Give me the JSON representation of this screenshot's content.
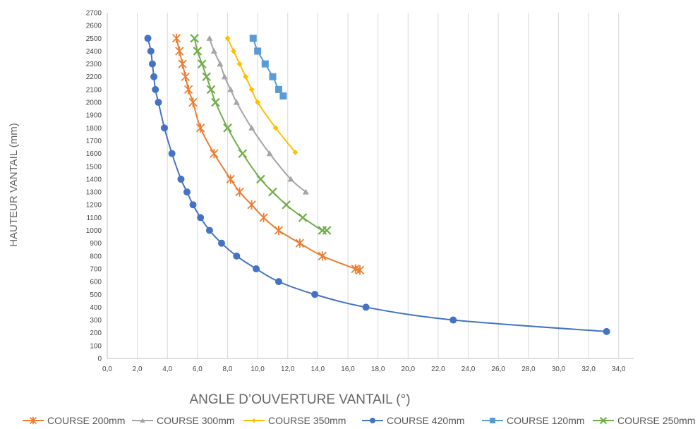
{
  "chart_data": {
    "type": "line",
    "title": "",
    "xlabel": "ANGLE D’OUVERTURE VANTAIL (°)",
    "ylabel": "HAUTEUR VANTAIL (mm)",
    "xlim": [
      0,
      35
    ],
    "ylim": [
      0,
      2700
    ],
    "x_ticks": [
      "0,0",
      "2,0",
      "4,0",
      "6,0",
      "8,0",
      "10,0",
      "12,0",
      "14,0",
      "16,0",
      "18,0",
      "20,0",
      "22,0",
      "24,0",
      "26,0",
      "28,0",
      "30,0",
      "32,0",
      "34,0"
    ],
    "y_ticks": [
      "0",
      "100",
      "200",
      "300",
      "400",
      "500",
      "600",
      "700",
      "800",
      "900",
      "1000",
      "1100",
      "1200",
      "1300",
      "1400",
      "1500",
      "1600",
      "1700",
      "1800",
      "1900",
      "2000",
      "2100",
      "2200",
      "2300",
      "2400",
      "2500",
      "2600",
      "2700"
    ],
    "grid": "vertical",
    "legend_position": "bottom",
    "series": [
      {
        "name": "COURSE 200mm",
        "color": "#ED7D31",
        "marker": "star",
        "x": [
          4.6,
          4.8,
          5.0,
          5.2,
          5.4,
          5.7,
          6.2,
          7.1,
          8.2,
          8.8,
          9.6,
          10.4,
          11.4,
          12.8,
          14.3,
          16.5,
          16.8
        ],
        "y": [
          2500,
          2400,
          2300,
          2200,
          2100,
          2000,
          1800,
          1600,
          1400,
          1300,
          1200,
          1100,
          1000,
          900,
          800,
          700,
          690
        ]
      },
      {
        "name": "COURSE 300mm",
        "color": "#A5A5A5",
        "marker": "triangle",
        "x": [
          6.8,
          7.1,
          7.5,
          7.8,
          8.2,
          8.6,
          9.6,
          10.8,
          12.2,
          13.2
        ],
        "y": [
          2500,
          2400,
          2300,
          2200,
          2100,
          2000,
          1800,
          1600,
          1400,
          1300
        ]
      },
      {
        "name": "COURSE 350mm",
        "color": "#FFC000",
        "marker": "diamond",
        "x": [
          8.0,
          8.4,
          8.8,
          9.2,
          9.6,
          10.0,
          11.2,
          12.5
        ],
        "y": [
          2500,
          2400,
          2300,
          2200,
          2100,
          2000,
          1800,
          1610
        ]
      },
      {
        "name": "COURSE 420mm",
        "color": "#4472C4",
        "marker": "circle",
        "x": [
          2.7,
          2.9,
          3.0,
          3.1,
          3.2,
          3.4,
          3.8,
          4.3,
          4.9,
          5.3,
          5.7,
          6.2,
          6.8,
          7.6,
          8.6,
          9.9,
          11.4,
          13.8,
          17.2,
          23.0,
          33.2
        ],
        "y": [
          2500,
          2400,
          2300,
          2200,
          2100,
          2000,
          1800,
          1600,
          1400,
          1300,
          1200,
          1100,
          1000,
          900,
          800,
          700,
          600,
          500,
          400,
          300,
          210
        ]
      },
      {
        "name": "COURSE 120mm",
        "color": "#5B9BD5",
        "marker": "square",
        "x": [
          9.7,
          10.0,
          10.5,
          11.0,
          11.4,
          11.7
        ],
        "y": [
          2500,
          2400,
          2300,
          2200,
          2100,
          2050
        ]
      },
      {
        "name": "COURSE 250mm",
        "color": "#70AD47",
        "marker": "x",
        "x": [
          5.8,
          6.0,
          6.3,
          6.6,
          6.9,
          7.2,
          8.0,
          9.0,
          10.2,
          11.0,
          11.9,
          13.0,
          14.3,
          14.6
        ],
        "y": [
          2500,
          2400,
          2300,
          2200,
          2100,
          2000,
          1800,
          1600,
          1400,
          1300,
          1200,
          1100,
          1000,
          1000
        ]
      }
    ]
  }
}
